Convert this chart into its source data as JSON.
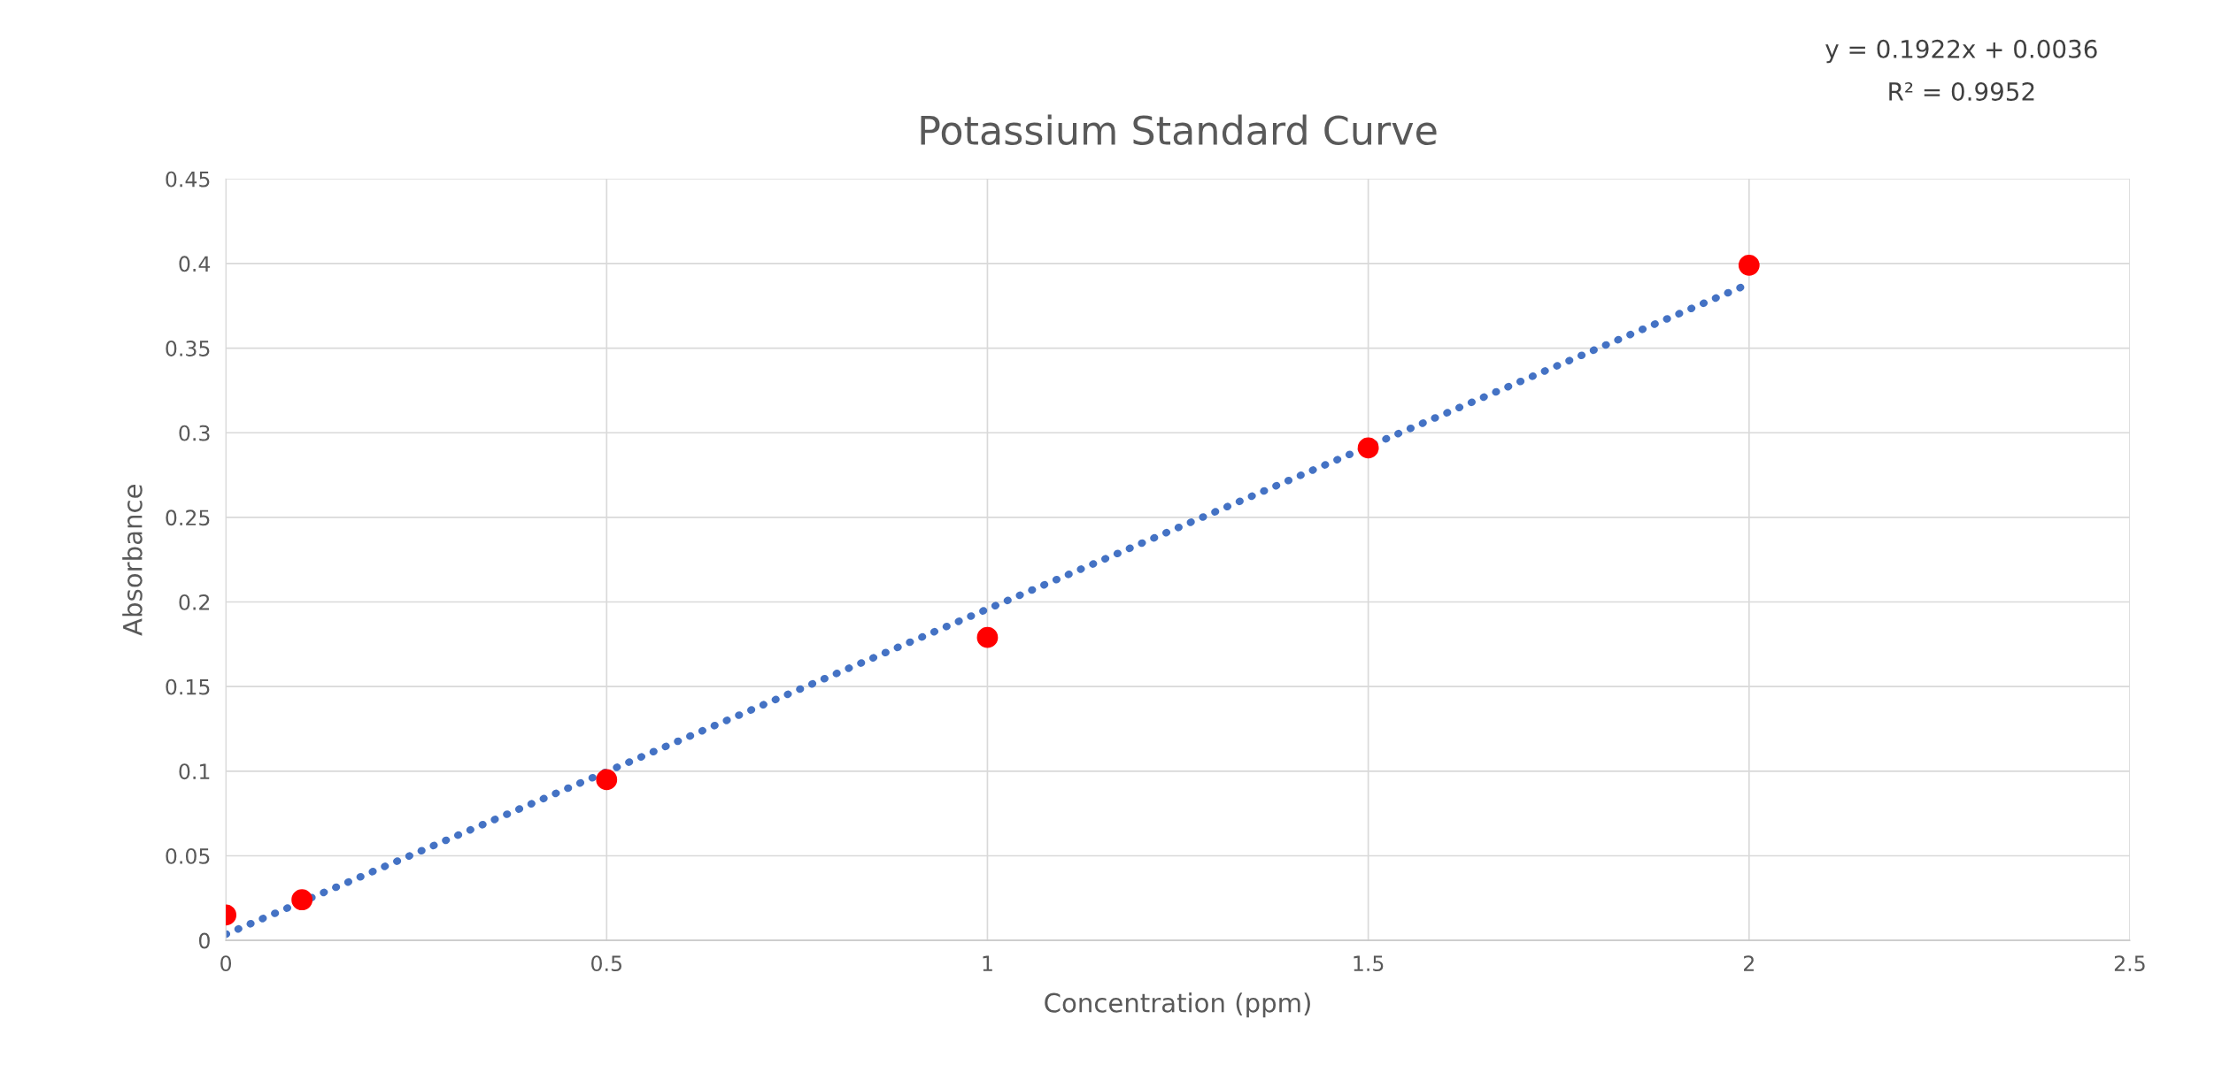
{
  "chart_data": {
    "type": "scatter",
    "title": "Potassium Standard Curve",
    "xlabel": "Concentration (ppm)",
    "ylabel": "Absorbance",
    "x": [
      0,
      0.1,
      0.5,
      1,
      1.5,
      2
    ],
    "series": [
      {
        "color": "#ff0000",
        "marker": "circle",
        "values": [
          0.015,
          0.024,
          0.095,
          0.179,
          0.291,
          0.399
        ]
      },
      {
        "type": "line",
        "color": "#4472c4",
        "line_style": "dotted",
        "marker": "none",
        "x": [
          0,
          2
        ],
        "values": [
          0.0036,
          0.388
        ]
      }
    ],
    "annotations": [
      "y = 0.1922x + 0.0036",
      "R² = 0.9952"
    ],
    "xlim": [
      0,
      2.5
    ],
    "xticks": [
      0,
      0.5,
      1,
      1.5,
      2,
      2.5
    ],
    "ylim": [
      0,
      0.45
    ],
    "yticks": [
      0,
      0.05,
      0.1,
      0.15,
      0.2,
      0.25,
      0.3,
      0.35,
      0.4,
      0.45
    ],
    "grid": true,
    "legend": false
  }
}
